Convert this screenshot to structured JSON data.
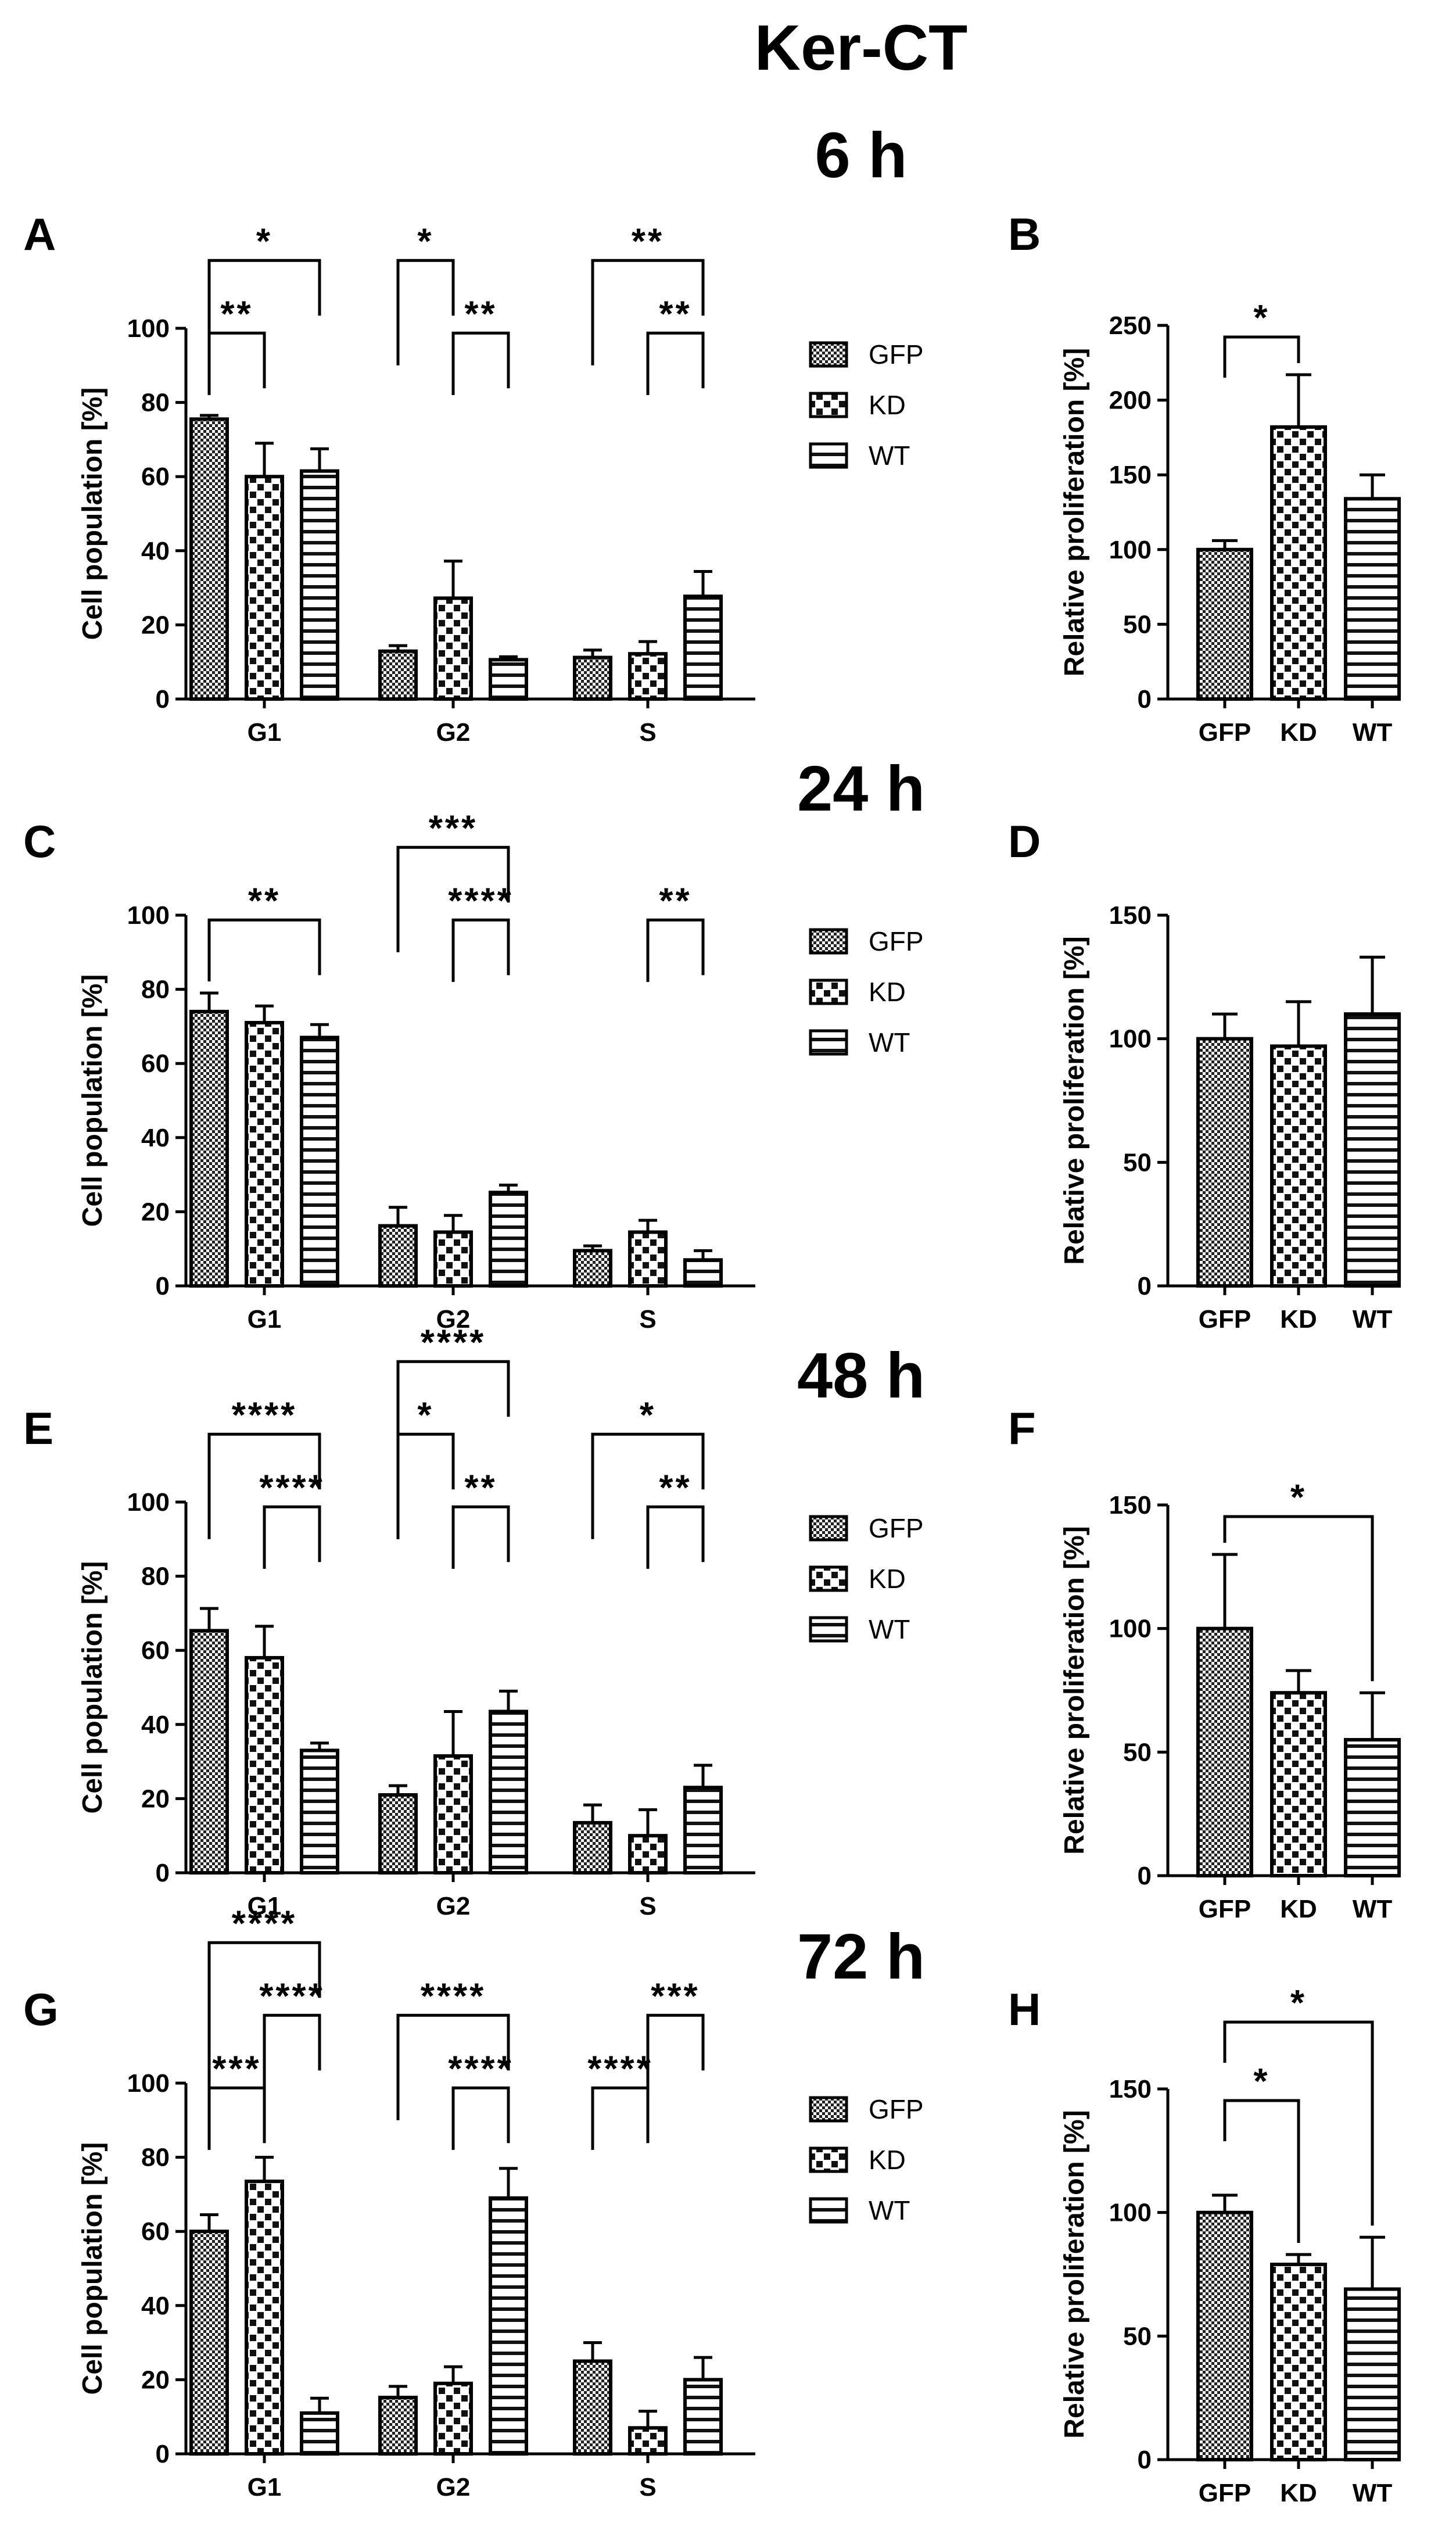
{
  "title": "Ker-CT",
  "time_labels": [
    "6 h",
    "24 h",
    "48 h",
    "72 h"
  ],
  "legend": [
    "GFP",
    "KD",
    "WT"
  ],
  "colors": {
    "axis": "#000000",
    "bar_fill": "#ffffff",
    "pattern": "#000000"
  },
  "chart_data": [
    {
      "panel": "A",
      "time": "6 h",
      "type": "bar",
      "ylabel": "Cell population [%]",
      "ylim": [
        0,
        100
      ],
      "yticks": [
        0,
        20,
        40,
        60,
        80,
        100
      ],
      "categories": [
        "G1",
        "G2",
        "S"
      ],
      "series": [
        {
          "name": "GFP",
          "values": [
            75.5,
            12.9,
            11.2
          ],
          "errors": [
            1.0,
            1.5,
            2.0
          ]
        },
        {
          "name": "KD",
          "values": [
            60.0,
            27.2,
            12.2
          ],
          "errors": [
            9.0,
            10.0,
            3.3
          ]
        },
        {
          "name": "WT",
          "values": [
            61.5,
            10.6,
            27.7
          ],
          "errors": [
            6.0,
            0.8,
            6.7
          ]
        }
      ],
      "significance": [
        {
          "cat": 0,
          "from": 0,
          "to": 2,
          "label": "*",
          "level": 1
        },
        {
          "cat": 0,
          "from": 0,
          "to": 1,
          "label": "**",
          "level": 0
        },
        {
          "cat": 1,
          "from": 0,
          "to": 1,
          "label": "*",
          "level": 1
        },
        {
          "cat": 1,
          "from": 1,
          "to": 2,
          "label": "**",
          "level": 0
        },
        {
          "cat": 2,
          "from": 0,
          "to": 2,
          "label": "**",
          "level": 1
        },
        {
          "cat": 2,
          "from": 1,
          "to": 2,
          "label": "**",
          "level": 0
        }
      ]
    },
    {
      "panel": "B",
      "time": "6 h",
      "type": "bar",
      "ylabel": "Relative proliferation [%]",
      "ylim": [
        0,
        250
      ],
      "yticks": [
        0,
        50,
        100,
        150,
        200,
        250
      ],
      "categories": [
        "GFP",
        "KD",
        "WT"
      ],
      "values": [
        100,
        182,
        134
      ],
      "errors": [
        6,
        35,
        16
      ],
      "significance": [
        {
          "from": 0,
          "to": 1,
          "label": "*",
          "level": 0
        }
      ]
    },
    {
      "panel": "C",
      "time": "24 h",
      "type": "bar",
      "ylabel": "Cell population [%]",
      "ylim": [
        0,
        100
      ],
      "yticks": [
        0,
        20,
        40,
        60,
        80,
        100
      ],
      "categories": [
        "G1",
        "G2",
        "S"
      ],
      "series": [
        {
          "name": "GFP",
          "values": [
            74.0,
            16.2,
            9.5
          ],
          "errors": [
            5.0,
            5.0,
            1.3
          ]
        },
        {
          "name": "KD",
          "values": [
            71.0,
            14.5,
            14.5
          ],
          "errors": [
            4.5,
            4.5,
            3.2
          ]
        },
        {
          "name": "WT",
          "values": [
            67.0,
            25.2,
            7.0
          ],
          "errors": [
            3.5,
            2.0,
            2.5
          ]
        }
      ],
      "significance": [
        {
          "cat": 0,
          "from": 0,
          "to": 2,
          "label": "**",
          "level": 0
        },
        {
          "cat": 1,
          "from": 0,
          "to": 2,
          "label": "***",
          "level": 1
        },
        {
          "cat": 1,
          "from": 1,
          "to": 2,
          "label": "****",
          "level": 0
        },
        {
          "cat": 2,
          "from": 1,
          "to": 2,
          "label": "**",
          "level": 0
        }
      ]
    },
    {
      "panel": "D",
      "time": "24 h",
      "type": "bar",
      "ylabel": "Relative proliferation [%]",
      "ylim": [
        0,
        150
      ],
      "yticks": [
        0,
        50,
        100,
        150
      ],
      "categories": [
        "GFP",
        "KD",
        "WT"
      ],
      "values": [
        100,
        97,
        110
      ],
      "errors": [
        10,
        18,
        23
      ],
      "significance": []
    },
    {
      "panel": "E",
      "time": "48 h",
      "type": "bar",
      "ylabel": "Cell population [%]",
      "ylim": [
        0,
        100
      ],
      "yticks": [
        0,
        20,
        40,
        60,
        80,
        100
      ],
      "categories": [
        "G1",
        "G2",
        "S"
      ],
      "series": [
        {
          "name": "GFP",
          "values": [
            65.3,
            21.0,
            13.5
          ],
          "errors": [
            6.0,
            2.5,
            4.8
          ]
        },
        {
          "name": "KD",
          "values": [
            58.0,
            31.5,
            10.0
          ],
          "errors": [
            8.5,
            12.0,
            7.0
          ]
        },
        {
          "name": "WT",
          "values": [
            33.0,
            43.5,
            23.0
          ],
          "errors": [
            2.0,
            5.5,
            6.0
          ]
        }
      ],
      "significance": [
        {
          "cat": 0,
          "from": 0,
          "to": 2,
          "label": "****",
          "level": 1
        },
        {
          "cat": 0,
          "from": 1,
          "to": 2,
          "label": "****",
          "level": 0
        },
        {
          "cat": 1,
          "from": 0,
          "to": 2,
          "label": "****",
          "level": 2
        },
        {
          "cat": 1,
          "from": 0,
          "to": 1,
          "label": "*",
          "level": 1
        },
        {
          "cat": 1,
          "from": 1,
          "to": 2,
          "label": "**",
          "level": 0
        },
        {
          "cat": 2,
          "from": 0,
          "to": 2,
          "label": "*",
          "level": 1
        },
        {
          "cat": 2,
          "from": 1,
          "to": 2,
          "label": "**",
          "level": 0
        }
      ]
    },
    {
      "panel": "F",
      "time": "48 h",
      "type": "bar",
      "ylabel": "Relative proliferation [%]",
      "ylim": [
        0,
        150
      ],
      "yticks": [
        0,
        50,
        100,
        150
      ],
      "categories": [
        "GFP",
        "KD",
        "WT"
      ],
      "values": [
        100,
        74,
        55
      ],
      "errors": [
        30,
        9,
        19
      ],
      "significance": [
        {
          "from": 0,
          "to": 2,
          "label": "*",
          "level": 0
        }
      ]
    },
    {
      "panel": "G",
      "time": "72 h",
      "type": "bar",
      "ylabel": "Cell population [%]",
      "ylim": [
        0,
        100
      ],
      "yticks": [
        0,
        20,
        40,
        60,
        80,
        100
      ],
      "categories": [
        "G1",
        "G2",
        "S"
      ],
      "series": [
        {
          "name": "GFP",
          "values": [
            60.0,
            15.2,
            25.0
          ],
          "errors": [
            4.5,
            3.0,
            5.0
          ]
        },
        {
          "name": "KD",
          "values": [
            73.5,
            19.0,
            7.0
          ],
          "errors": [
            6.5,
            4.5,
            4.5
          ]
        },
        {
          "name": "WT",
          "values": [
            11.0,
            69.0,
            20.0
          ],
          "errors": [
            4.0,
            8.0,
            6.0
          ]
        }
      ],
      "significance": [
        {
          "cat": 0,
          "from": 0,
          "to": 2,
          "label": "****",
          "level": 2
        },
        {
          "cat": 0,
          "from": 1,
          "to": 2,
          "label": "****",
          "level": 1
        },
        {
          "cat": 0,
          "from": 0,
          "to": 1,
          "label": "***",
          "level": 0
        },
        {
          "cat": 1,
          "from": 0,
          "to": 2,
          "label": "****",
          "level": 1
        },
        {
          "cat": 1,
          "from": 1,
          "to": 2,
          "label": "****",
          "level": 0
        },
        {
          "cat": 2,
          "from": 1,
          "to": 2,
          "label": "***",
          "level": 1
        },
        {
          "cat": 2,
          "from": 0,
          "to": 1,
          "label": "****",
          "level": 0
        }
      ]
    },
    {
      "panel": "H",
      "time": "72 h",
      "type": "bar",
      "ylabel": "Relative proliferation [%]",
      "ylim": [
        0,
        150
      ],
      "yticks": [
        0,
        50,
        100,
        150
      ],
      "categories": [
        "GFP",
        "KD",
        "WT"
      ],
      "values": [
        100,
        79,
        69
      ],
      "errors": [
        7,
        4,
        21
      ],
      "significance": [
        {
          "from": 0,
          "to": 2,
          "label": "*",
          "level": 1
        },
        {
          "from": 0,
          "to": 1,
          "label": "*",
          "level": 0
        }
      ]
    }
  ]
}
